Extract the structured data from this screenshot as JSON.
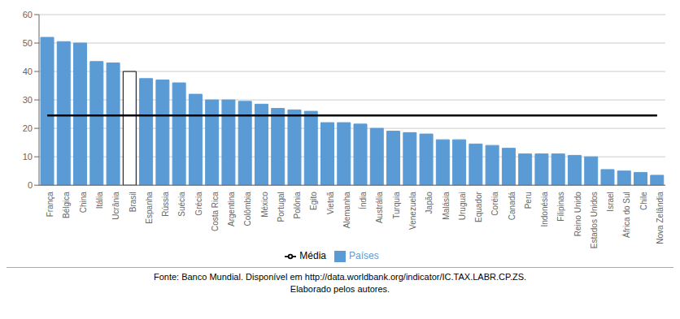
{
  "chart_data": {
    "type": "bar",
    "categories": [
      "França",
      "Bélgica",
      "China",
      "Itália",
      "Ucrânia",
      "Brasil",
      "Espanha",
      "Rússia",
      "Suécia",
      "Grécia",
      "Costa Rica",
      "Argentina",
      "Colômbia",
      "México",
      "Portugal",
      "Polônia",
      "Egito",
      "Vietnã",
      "Alemanha",
      "Índia",
      "Austrália",
      "Turquia",
      "Venezuela",
      "Japão",
      "Malásia",
      "Uruguai",
      "Equador",
      "Coréia",
      "Canadá",
      "Peru",
      "Indonésia",
      "Filipinas",
      "Reino Unido",
      "Estados Unidos",
      "Israel",
      "África do Sul",
      "Chile",
      "Nova Zelândia"
    ],
    "series": [
      {
        "name": "Países",
        "type": "bar",
        "color": "#5B9BD5",
        "colors": [
          "#5B9BD5",
          "#5B9BD5",
          "#5B9BD5",
          "#5B9BD5",
          "#5B9BD5",
          "#ffffff",
          "#5B9BD5",
          "#5B9BD5",
          "#5B9BD5",
          "#5B9BD5",
          "#5B9BD5",
          "#5B9BD5",
          "#5B9BD5",
          "#5B9BD5",
          "#5B9BD5",
          "#5B9BD5",
          "#5B9BD5",
          "#5B9BD5",
          "#5B9BD5",
          "#5B9BD5",
          "#5B9BD5",
          "#5B9BD5",
          "#5B9BD5",
          "#5B9BD5",
          "#5B9BD5",
          "#5B9BD5",
          "#5B9BD5",
          "#5B9BD5",
          "#5B9BD5",
          "#5B9BD5",
          "#5B9BD5",
          "#5B9BD5",
          "#5B9BD5",
          "#5B9BD5",
          "#5B9BD5",
          "#5B9BD5",
          "#5B9BD5",
          "#5B9BD5"
        ],
        "values": [
          52,
          50.5,
          50,
          43.5,
          43,
          40,
          37.5,
          37,
          36,
          32,
          30,
          30,
          29.5,
          28.5,
          27,
          26.5,
          26,
          22,
          22,
          21.5,
          20,
          19,
          18.5,
          18,
          16,
          16,
          14.5,
          14,
          13,
          11,
          11,
          11,
          10.5,
          10,
          5.5,
          5,
          4.5,
          3.5
        ]
      },
      {
        "name": "Média",
        "type": "line",
        "color": "#000000",
        "values": [
          24.5,
          24.5,
          24.5,
          24.5,
          24.5,
          24.5,
          24.5,
          24.5,
          24.5,
          24.5,
          24.5,
          24.5,
          24.5,
          24.5,
          24.5,
          24.5,
          24.5,
          24.5,
          24.5,
          24.5,
          24.5,
          24.5,
          24.5,
          24.5,
          24.5,
          24.5,
          24.5,
          24.5,
          24.5,
          24.5,
          24.5,
          24.5,
          24.5,
          24.5,
          24.5,
          24.5,
          24.5,
          24.5
        ]
      }
    ],
    "ylim": [
      0,
      60
    ],
    "yticks": [
      0,
      10,
      20,
      30,
      40,
      50,
      60
    ],
    "grid": true,
    "annotations": [
      "Fonte: Banco Mundial. Disponível em http://data.worldbank.org/indicator/IC.TAX.LABR.CP.ZS.",
      "Elaborado pelos autores."
    ]
  }
}
